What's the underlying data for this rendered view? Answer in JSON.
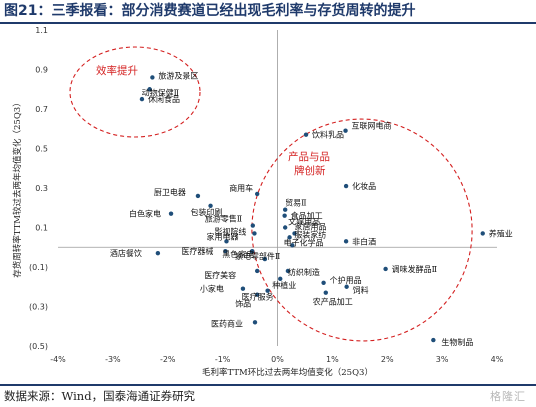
{
  "figure": {
    "title": "图21：三季报看：部分消费赛道已经出现毛利率与存货周转的提升",
    "source": "数据来源：Wind，国泰海通证券研究",
    "watermark": "格隆汇"
  },
  "chart_data": {
    "type": "scatter",
    "xlabel": "毛利率TTM环比过去两年均值变化（25Q3）",
    "ylabel": "存货周转率TTM较过去两年均值变化（25Q3）",
    "xlim": [
      -0.04,
      0.04
    ],
    "ylim": [
      -0.5,
      1.1
    ],
    "x_ticks": [
      "-4%",
      "-3%",
      "-2%",
      "-1%",
      "0%",
      "1%",
      "2%",
      "3%",
      "4%"
    ],
    "y_ticks": [
      "1.1",
      "0.9",
      "0.7",
      "0.5",
      "0.3",
      "0.1",
      "(0.1)",
      "(0.3)",
      "(0.5)"
    ],
    "marker_color": "#1f4e79",
    "annotation_color": "#d42020",
    "annotations": [
      {
        "lines": [
          "效率提升"
        ]
      },
      {
        "lines": [
          "产品与品",
          "牌创新"
        ]
      }
    ],
    "points": [
      {
        "label": "旅游及景区",
        "x": -0.0228,
        "y": 0.86
      },
      {
        "label": "动物保健Ⅱ",
        "x": -0.0233,
        "y": 0.8
      },
      {
        "label": "休闲食品",
        "x": -0.0247,
        "y": 0.75
      },
      {
        "label": "互联网电商",
        "x": 0.0124,
        "y": 0.59
      },
      {
        "label": "饮料乳品",
        "x": 0.0052,
        "y": 0.57
      },
      {
        "label": "化妆品",
        "x": 0.0125,
        "y": 0.31
      },
      {
        "label": "厨卫电器",
        "x": -0.0145,
        "y": 0.26
      },
      {
        "label": "商用车",
        "x": -0.0037,
        "y": 0.27
      },
      {
        "label": "包装印刷",
        "x": -0.0122,
        "y": 0.21
      },
      {
        "label": "白色家电",
        "x": -0.0194,
        "y": 0.17
      },
      {
        "label": "贸易Ⅱ",
        "x": 0.0014,
        "y": 0.19
      },
      {
        "label": "食品加工",
        "x": 0.0013,
        "y": 0.16
      },
      {
        "label": "养殖业",
        "x": 0.0374,
        "y": 0.07
      },
      {
        "label": "旅游零售Ⅱ",
        "x": -0.0045,
        "y": 0.11
      },
      {
        "label": "文娱用品",
        "x": 0.0014,
        "y": 0.1
      },
      {
        "label": "影视院线",
        "x": -0.0042,
        "y": 0.07
      },
      {
        "label": "家居用品",
        "x": 0.0031,
        "y": 0.07
      },
      {
        "label": "电子化学品",
        "x": 0.0022,
        "y": 0.05
      },
      {
        "label": "非白酒",
        "x": 0.0125,
        "y": 0.03
      },
      {
        "label": "家用电器",
        "x": -0.0093,
        "y": 0.03
      },
      {
        "label": "服装家纺",
        "x": 0.0027,
        "y": 0.01
      },
      {
        "label": "酒店餐饮",
        "x": -0.0218,
        "y": -0.03
      },
      {
        "label": "医疗器械",
        "x": -0.0095,
        "y": -0.02
      },
      {
        "label": "黑色家电",
        "x": -0.0046,
        "y": -0.02
      },
      {
        "label": "家电零部件Ⅱ",
        "x": -0.0023,
        "y": -0.06
      },
      {
        "label": "调味发酵品Ⅱ",
        "x": 0.0197,
        "y": -0.11
      },
      {
        "label": "医疗美容",
        "x": -0.0037,
        "y": -0.12
      },
      {
        "label": "纺织制造",
        "x": 0.0019,
        "y": -0.12
      },
      {
        "label": "个护用品",
        "x": 0.0084,
        "y": -0.18
      },
      {
        "label": "饲料",
        "x": 0.0126,
        "y": -0.2
      },
      {
        "label": "种植业",
        "x": 0.0005,
        "y": -0.16
      },
      {
        "label": "小家电",
        "x": -0.0063,
        "y": -0.21
      },
      {
        "label": "医疗服务",
        "x": -0.0018,
        "y": -0.22
      },
      {
        "label": "农产品加工",
        "x": 0.0088,
        "y": -0.23
      },
      {
        "label": "饰品",
        "x": -0.0037,
        "y": -0.24
      },
      {
        "label": "医药商业",
        "x": -0.0041,
        "y": -0.38
      },
      {
        "label": "生物制品",
        "x": 0.0284,
        "y": -0.47
      }
    ]
  }
}
